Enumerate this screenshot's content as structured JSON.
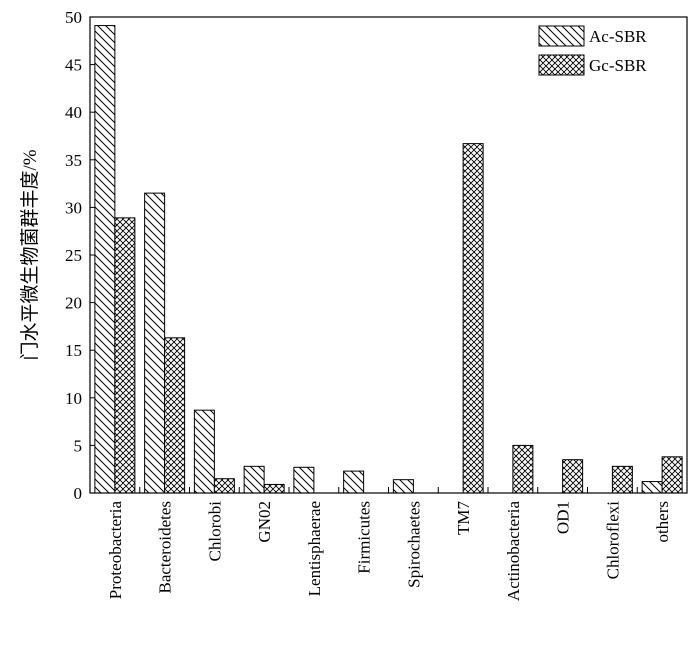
{
  "chart_data": {
    "type": "bar",
    "title": "",
    "xlabel": "",
    "ylabel": "门水平微生物菌群丰度/%",
    "ylim": [
      0,
      50
    ],
    "yticks": [
      0,
      5,
      10,
      15,
      20,
      25,
      30,
      35,
      40,
      45,
      50
    ],
    "grid": false,
    "legend_position": "top-right",
    "categories": [
      "Proteobacteria",
      "Bacteroidetes",
      "Chlorobi",
      "GN02",
      "Lentisphaerae",
      "Firmicutes",
      "Spirochaetes",
      "TM7",
      "Actinobacteria",
      "OD1",
      "Chloroflexi",
      "others"
    ],
    "series": [
      {
        "name": "Ac-SBR",
        "pattern": "diagonal-hatch",
        "values": [
          49.1,
          31.5,
          8.7,
          2.8,
          2.7,
          2.3,
          1.4,
          0,
          0,
          0,
          0,
          1.2
        ]
      },
      {
        "name": "Gc-SBR",
        "pattern": "cross-hatch",
        "values": [
          28.9,
          16.3,
          1.5,
          0.9,
          0,
          0,
          0,
          36.7,
          5.0,
          3.5,
          2.8,
          3.8
        ]
      }
    ]
  }
}
